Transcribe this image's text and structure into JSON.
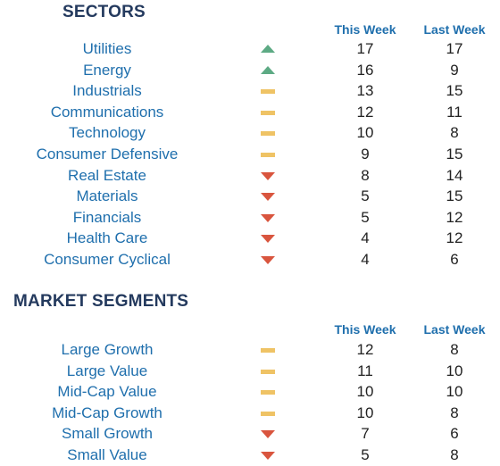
{
  "colors": {
    "up": "#5daa84",
    "flat": "#efc365",
    "down": "#d9553e",
    "heading": "#243a5e",
    "label": "#1f6fad"
  },
  "sectors": {
    "title": "SECTORS",
    "col_this_week": "This Week",
    "col_last_week": "Last Week",
    "rows": [
      {
        "name": "Utilities",
        "trend": "up",
        "this_week": "17",
        "last_week": "17"
      },
      {
        "name": "Energy",
        "trend": "up",
        "this_week": "16",
        "last_week": "9"
      },
      {
        "name": "Industrials",
        "trend": "flat",
        "this_week": "13",
        "last_week": "15"
      },
      {
        "name": "Communications",
        "trend": "flat",
        "this_week": "12",
        "last_week": "11"
      },
      {
        "name": "Technology",
        "trend": "flat",
        "this_week": "10",
        "last_week": "8"
      },
      {
        "name": "Consumer Defensive",
        "trend": "flat",
        "this_week": "9",
        "last_week": "15"
      },
      {
        "name": "Real Estate",
        "trend": "down",
        "this_week": "8",
        "last_week": "14"
      },
      {
        "name": "Materials",
        "trend": "down",
        "this_week": "5",
        "last_week": "15"
      },
      {
        "name": "Financials",
        "trend": "down",
        "this_week": "5",
        "last_week": "12"
      },
      {
        "name": "Health Care",
        "trend": "down",
        "this_week": "4",
        "last_week": "12"
      },
      {
        "name": "Consumer Cyclical",
        "trend": "down",
        "this_week": "4",
        "last_week": "6"
      }
    ]
  },
  "segments": {
    "title": "MARKET SEGMENTS",
    "col_this_week": "This Week",
    "col_last_week": "Last Week",
    "rows": [
      {
        "name": "Large Growth",
        "trend": "flat",
        "this_week": "12",
        "last_week": "8"
      },
      {
        "name": "Large Value",
        "trend": "flat",
        "this_week": "11",
        "last_week": "10"
      },
      {
        "name": "Mid-Cap Value",
        "trend": "flat",
        "this_week": "10",
        "last_week": "10"
      },
      {
        "name": "Mid-Cap Growth",
        "trend": "flat",
        "this_week": "10",
        "last_week": "8"
      },
      {
        "name": "Small Growth",
        "trend": "down",
        "this_week": "7",
        "last_week": "6"
      },
      {
        "name": "Small Value",
        "trend": "down",
        "this_week": "5",
        "last_week": "8"
      }
    ]
  }
}
